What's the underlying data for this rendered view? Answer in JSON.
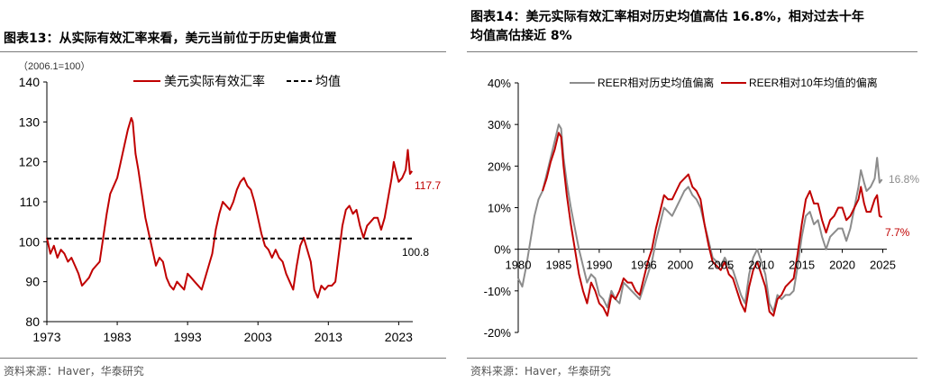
{
  "left": {
    "title": "图表13：从实际有效汇率来看，美元当前位于历史偏贵位置",
    "source": "资料来源：Haver，华泰研究",
    "chart_data": {
      "type": "line",
      "unit_note": "（2006.1=100）",
      "xlabel": "",
      "ylabel": "",
      "ylim": [
        80,
        140
      ],
      "y_ticks": [
        "80",
        "90",
        "100",
        "110",
        "120",
        "130",
        "140"
      ],
      "xlim": [
        1973,
        2025
      ],
      "x_ticks": [
        "1973",
        "1983",
        "1993",
        "2003",
        "2013",
        "2023"
      ],
      "grid": false,
      "legend_position": "top",
      "series": [
        {
          "name": "美元实际有效汇率",
          "color": "#c00000",
          "x": [
            1973.0,
            1973.5,
            1974.0,
            1974.5,
            1975.0,
            1975.5,
            1976.0,
            1976.5,
            1977.0,
            1977.5,
            1978.0,
            1978.5,
            1979.0,
            1979.5,
            1980.0,
            1980.5,
            1981.0,
            1981.5,
            1982.0,
            1982.5,
            1983.0,
            1983.5,
            1984.0,
            1984.5,
            1985.0,
            1985.2,
            1985.6,
            1986.0,
            1986.5,
            1987.0,
            1987.5,
            1988.0,
            1988.5,
            1989.0,
            1989.5,
            1990.0,
            1990.5,
            1991.0,
            1991.5,
            1992.0,
            1992.5,
            1993.0,
            1993.5,
            1994.0,
            1994.5,
            1995.0,
            1995.5,
            1996.0,
            1996.5,
            1997.0,
            1997.5,
            1998.0,
            1998.5,
            1999.0,
            1999.5,
            2000.0,
            2000.5,
            2001.0,
            2001.5,
            2002.0,
            2002.5,
            2003.0,
            2003.5,
            2004.0,
            2004.5,
            2005.0,
            2005.5,
            2006.0,
            2006.5,
            2007.0,
            2007.5,
            2008.0,
            2008.5,
            2009.0,
            2009.5,
            2010.0,
            2010.5,
            2011.0,
            2011.5,
            2012.0,
            2012.5,
            2013.0,
            2013.5,
            2014.0,
            2014.5,
            2015.0,
            2015.5,
            2016.0,
            2016.5,
            2017.0,
            2017.5,
            2018.0,
            2018.5,
            2019.0,
            2019.5,
            2020.0,
            2020.5,
            2021.0,
            2021.5,
            2022.0,
            2022.3,
            2022.7,
            2023.0,
            2023.5,
            2024.0,
            2024.3,
            2024.6,
            2024.9
          ],
          "values": [
            101,
            97,
            99,
            96,
            98,
            97,
            95,
            96,
            94,
            92,
            89,
            90,
            91,
            93,
            94,
            95,
            101,
            107,
            112,
            114,
            116,
            120,
            124,
            128,
            131,
            130,
            122,
            118,
            112,
            106,
            102,
            98,
            94,
            96,
            95,
            91,
            89,
            88,
            90,
            89,
            88,
            92,
            91,
            90,
            89,
            88,
            91,
            94,
            97,
            103,
            107,
            110,
            109,
            108,
            110,
            113,
            115,
            116,
            114,
            113,
            110,
            106,
            102,
            99,
            98,
            96,
            98,
            96,
            95,
            92,
            90,
            88,
            94,
            99,
            101,
            98,
            95,
            88,
            86,
            89,
            88,
            89,
            89,
            90,
            97,
            104,
            108,
            109,
            107,
            108,
            104,
            101,
            104,
            105,
            106,
            106,
            103,
            106,
            111,
            116,
            120,
            117,
            115,
            116,
            118,
            123,
            117,
            117.7
          ],
          "end_label": "117.7"
        },
        {
          "name": "均值",
          "color": "#000000",
          "style": "dashed",
          "x": [
            1973,
            2025
          ],
          "values": [
            100.8,
            100.8
          ],
          "end_label": "100.8"
        }
      ]
    }
  },
  "right": {
    "title_line1": "图表14：美元实际有效汇率相对历史均值高估 16.8%，相对过去十年",
    "title_line2": "均值高估接近 8%",
    "source": "资料来源：Haver，华泰研究",
    "chart_data": {
      "type": "line",
      "xlabel": "",
      "ylabel": "",
      "ylim": [
        -20,
        40
      ],
      "y_ticks": [
        "-20%",
        "-10%",
        "0%",
        "10%",
        "20%",
        "30%",
        "40%"
      ],
      "xlim": [
        1980,
        2025.5
      ],
      "x_ticks": [
        "1980",
        "1985",
        "1990",
        "1996",
        "2000",
        "2005",
        "2010",
        "2015",
        "2020",
        "2025"
      ],
      "grid": false,
      "legend_position": "top",
      "series": [
        {
          "name": "REER相对历史均值偏离",
          "color": "#8c8c8c",
          "unit": "%",
          "x": [
            1980.0,
            1980.5,
            1981.0,
            1981.5,
            1982.0,
            1982.5,
            1983.0,
            1983.5,
            1984.0,
            1984.5,
            1985.0,
            1985.3,
            1985.6,
            1986.0,
            1986.5,
            1987.0,
            1987.5,
            1988.0,
            1988.5,
            1989.0,
            1989.5,
            1990.0,
            1990.5,
            1991.0,
            1991.5,
            1992.0,
            1992.5,
            1993.0,
            1993.5,
            1994.0,
            1994.5,
            1995.0,
            1995.5,
            1996.0,
            1996.5,
            1997.0,
            1997.5,
            1998.0,
            1998.5,
            1999.0,
            1999.5,
            2000.0,
            2000.5,
            2001.0,
            2001.5,
            2002.0,
            2002.5,
            2003.0,
            2003.5,
            2004.0,
            2004.5,
            2005.0,
            2005.5,
            2006.0,
            2006.5,
            2007.0,
            2007.5,
            2008.0,
            2008.5,
            2009.0,
            2009.5,
            2010.0,
            2010.5,
            2011.0,
            2011.5,
            2012.0,
            2012.5,
            2013.0,
            2013.5,
            2014.0,
            2014.5,
            2015.0,
            2015.5,
            2016.0,
            2016.5,
            2017.0,
            2017.5,
            2018.0,
            2018.5,
            2019.0,
            2019.5,
            2020.0,
            2020.5,
            2021.0,
            2021.5,
            2022.0,
            2022.3,
            2022.7,
            2023.0,
            2023.5,
            2024.0,
            2024.3,
            2024.6,
            2024.9
          ],
          "values": [
            -7,
            -9,
            -4,
            2,
            8,
            12,
            14,
            18,
            22,
            26,
            30,
            29,
            22,
            16,
            10,
            5,
            0,
            -4,
            -8,
            -6,
            -7,
            -11,
            -12,
            -14,
            -10,
            -12,
            -13,
            -8,
            -9,
            -10,
            -11,
            -12,
            -9,
            -6,
            -3,
            2,
            6,
            10,
            9,
            8,
            10,
            12,
            14,
            15,
            13,
            12,
            10,
            6,
            2,
            -2,
            -3,
            -4,
            -2,
            -4,
            -5,
            -8,
            -11,
            -13,
            -6,
            -2,
            0,
            -3,
            -6,
            -13,
            -15,
            -11,
            -12,
            -11,
            -11,
            -10,
            -4,
            3,
            8,
            9,
            6,
            7,
            3,
            0,
            3,
            4,
            5,
            5,
            2,
            5,
            10,
            15,
            19,
            16,
            14,
            15,
            17,
            22,
            16,
            16.8
          ],
          "end_label": "16.8%"
        },
        {
          "name": "REER相对10年均值的偏离",
          "color": "#c00000",
          "unit": "%",
          "x": [
            1983.0,
            1983.5,
            1984.0,
            1984.5,
            1985.0,
            1985.3,
            1985.6,
            1986.0,
            1986.5,
            1987.0,
            1987.5,
            1988.0,
            1988.5,
            1989.0,
            1989.5,
            1990.0,
            1990.5,
            1991.0,
            1991.5,
            1992.0,
            1992.5,
            1993.0,
            1993.5,
            1994.0,
            1994.5,
            1995.0,
            1995.5,
            1996.0,
            1996.5,
            1997.0,
            1997.5,
            1998.0,
            1998.5,
            1999.0,
            1999.5,
            2000.0,
            2000.5,
            2001.0,
            2001.5,
            2002.0,
            2002.5,
            2003.0,
            2003.5,
            2004.0,
            2004.5,
            2005.0,
            2005.5,
            2006.0,
            2006.5,
            2007.0,
            2007.5,
            2008.0,
            2008.5,
            2009.0,
            2009.5,
            2010.0,
            2010.5,
            2011.0,
            2011.5,
            2012.0,
            2012.5,
            2013.0,
            2013.5,
            2014.0,
            2014.5,
            2015.0,
            2015.5,
            2016.0,
            2016.5,
            2017.0,
            2017.5,
            2018.0,
            2018.5,
            2019.0,
            2019.5,
            2020.0,
            2020.5,
            2021.0,
            2021.5,
            2022.0,
            2022.3,
            2022.7,
            2023.0,
            2023.5,
            2024.0,
            2024.3,
            2024.6,
            2024.9
          ],
          "values": [
            14,
            17,
            21,
            24,
            28,
            27,
            20,
            13,
            6,
            0,
            -6,
            -10,
            -13,
            -8,
            -10,
            -13,
            -14,
            -16,
            -11,
            -12,
            -10,
            -7,
            -8,
            -8,
            -10,
            -11,
            -7,
            -3,
            0,
            5,
            9,
            13,
            12,
            12,
            14,
            16,
            17,
            18,
            15,
            14,
            12,
            6,
            1,
            -3,
            -4,
            -5,
            -3,
            -6,
            -7,
            -10,
            -13,
            -15,
            -9,
            -5,
            -3,
            -6,
            -9,
            -15,
            -16,
            -12,
            -11,
            -9,
            -8,
            -7,
            -1,
            6,
            12,
            14,
            11,
            11,
            7,
            4,
            7,
            8,
            10,
            10,
            7,
            8,
            10,
            12,
            15,
            11,
            9,
            9,
            12,
            13,
            8,
            7.7
          ],
          "end_label": "7.7%"
        }
      ]
    }
  }
}
